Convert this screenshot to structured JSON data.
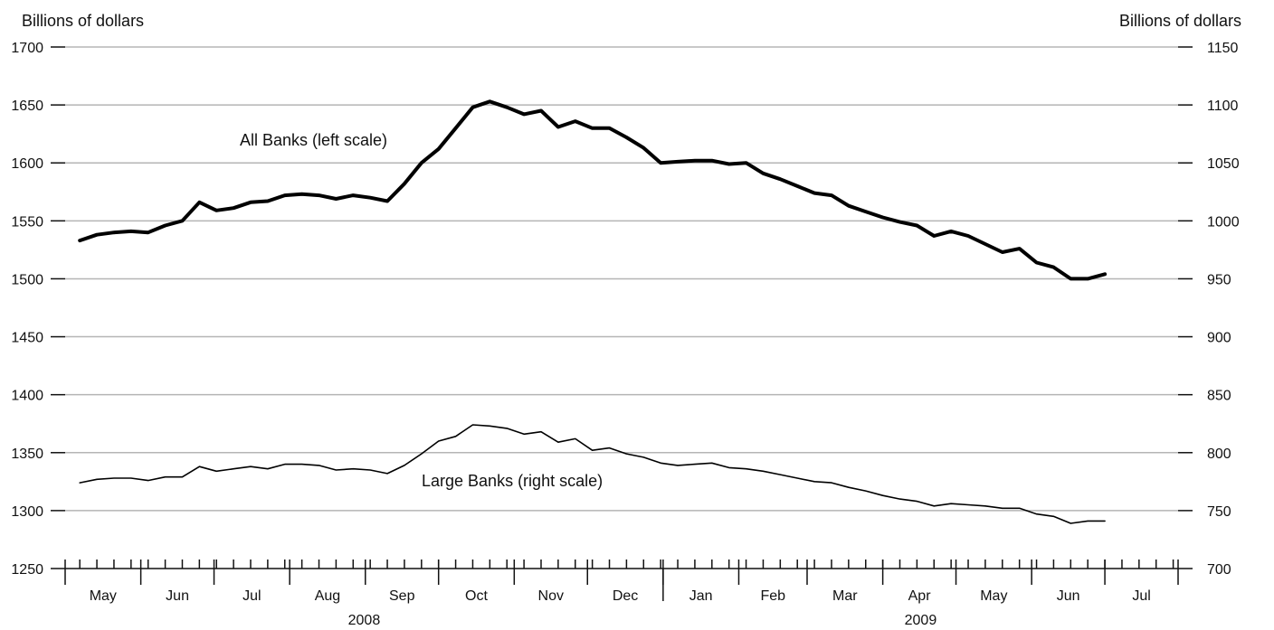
{
  "chart_data": {
    "type": "line",
    "left_axis": {
      "label": "Billions of dollars",
      "range": [
        1250,
        1700
      ],
      "ticks": [
        1250,
        1300,
        1350,
        1400,
        1450,
        1500,
        1550,
        1600,
        1650,
        1700
      ]
    },
    "right_axis": {
      "label": "Billions of dollars",
      "range": [
        700,
        1150
      ],
      "ticks": [
        700,
        750,
        800,
        850,
        900,
        950,
        1000,
        1050,
        1100,
        1150
      ]
    },
    "x_axis": {
      "months": [
        "May",
        "Jun",
        "Jul",
        "Aug",
        "Sep",
        "Oct",
        "Nov",
        "Dec",
        "Jan",
        "Feb",
        "Mar",
        "Apr",
        "May",
        "Jun",
        "Jul"
      ],
      "years": [
        "2008",
        "2009"
      ],
      "start": "2008-05-01",
      "end": "2009-07-31"
    },
    "grid": true,
    "series": [
      {
        "name": "All Banks (left scale)",
        "axis": "left",
        "weight": "bold",
        "x": [
          "2008-05-07",
          "2008-05-14",
          "2008-05-21",
          "2008-05-28",
          "2008-06-04",
          "2008-06-11",
          "2008-06-18",
          "2008-06-25",
          "2008-07-02",
          "2008-07-09",
          "2008-07-16",
          "2008-07-23",
          "2008-07-30",
          "2008-08-06",
          "2008-08-13",
          "2008-08-20",
          "2008-08-27",
          "2008-09-03",
          "2008-09-10",
          "2008-09-17",
          "2008-09-24",
          "2008-10-01",
          "2008-10-08",
          "2008-10-15",
          "2008-10-22",
          "2008-10-29",
          "2008-11-05",
          "2008-11-12",
          "2008-11-19",
          "2008-11-26",
          "2008-12-03",
          "2008-12-10",
          "2008-12-17",
          "2008-12-24",
          "2008-12-31",
          "2009-01-07",
          "2009-01-14",
          "2009-01-21",
          "2009-01-28",
          "2009-02-04",
          "2009-02-11",
          "2009-02-18",
          "2009-02-25",
          "2009-03-04",
          "2009-03-11",
          "2009-03-18",
          "2009-03-25",
          "2009-04-01",
          "2009-04-08",
          "2009-04-15",
          "2009-04-22",
          "2009-04-29",
          "2009-05-06",
          "2009-05-13",
          "2009-05-20",
          "2009-05-27",
          "2009-06-03",
          "2009-06-10",
          "2009-06-17",
          "2009-06-24",
          "2009-07-01"
        ],
        "y": [
          1533,
          1538,
          1540,
          1541,
          1540,
          1546,
          1550,
          1566,
          1559,
          1561,
          1566,
          1567,
          1572,
          1573,
          1572,
          1569,
          1572,
          1570,
          1567,
          1582,
          1600,
          1612,
          1630,
          1648,
          1653,
          1648,
          1642,
          1645,
          1631,
          1636,
          1630,
          1630,
          1622,
          1613,
          1600,
          1601,
          1602,
          1602,
          1599,
          1600,
          1591,
          1586,
          1580,
          1574,
          1572,
          1563,
          1558,
          1553,
          1549,
          1546,
          1537,
          1541,
          1537,
          1530,
          1523,
          1526,
          1514,
          1510,
          1500,
          1500,
          1504
        ]
      },
      {
        "name": "Large Banks (right scale)",
        "axis": "right",
        "weight": "thin",
        "x": [
          "2008-05-07",
          "2008-05-14",
          "2008-05-21",
          "2008-05-28",
          "2008-06-04",
          "2008-06-11",
          "2008-06-18",
          "2008-06-25",
          "2008-07-02",
          "2008-07-09",
          "2008-07-16",
          "2008-07-23",
          "2008-07-30",
          "2008-08-06",
          "2008-08-13",
          "2008-08-20",
          "2008-08-27",
          "2008-09-03",
          "2008-09-10",
          "2008-09-17",
          "2008-09-24",
          "2008-10-01",
          "2008-10-08",
          "2008-10-15",
          "2008-10-22",
          "2008-10-29",
          "2008-11-05",
          "2008-11-12",
          "2008-11-19",
          "2008-11-26",
          "2008-12-03",
          "2008-12-10",
          "2008-12-17",
          "2008-12-24",
          "2008-12-31",
          "2009-01-07",
          "2009-01-14",
          "2009-01-21",
          "2009-01-28",
          "2009-02-04",
          "2009-02-11",
          "2009-02-18",
          "2009-02-25",
          "2009-03-04",
          "2009-03-11",
          "2009-03-18",
          "2009-03-25",
          "2009-04-01",
          "2009-04-08",
          "2009-04-15",
          "2009-04-22",
          "2009-04-29",
          "2009-05-06",
          "2009-05-13",
          "2009-05-20",
          "2009-05-27",
          "2009-06-03",
          "2009-06-10",
          "2009-06-17",
          "2009-06-24",
          "2009-07-01"
        ],
        "y": [
          774,
          777,
          778,
          778,
          776,
          779,
          779,
          788,
          784,
          786,
          788,
          786,
          790,
          790,
          789,
          785,
          786,
          785,
          782,
          789,
          799,
          810,
          814,
          824,
          823,
          821,
          816,
          818,
          809,
          812,
          802,
          804,
          799,
          796,
          791,
          789,
          790,
          791,
          787,
          786,
          784,
          781,
          778,
          775,
          774,
          770,
          767,
          763,
          760,
          758,
          754,
          756,
          755,
          754,
          752,
          752,
          747,
          745,
          739,
          741,
          741
        ]
      }
    ]
  }
}
